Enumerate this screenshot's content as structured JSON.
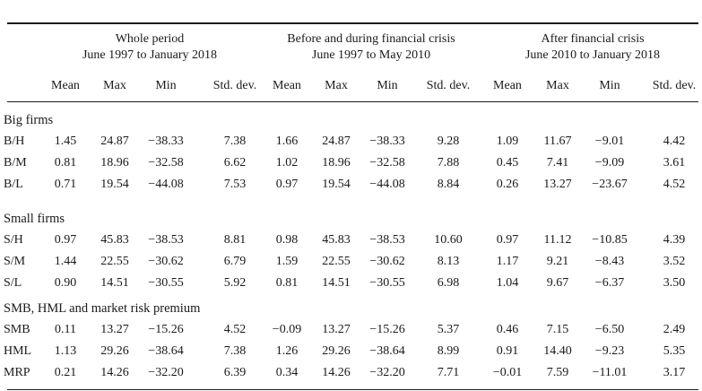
{
  "groups": [
    {
      "title": "Whole period",
      "subtitle": "June 1997 to January 2018"
    },
    {
      "title": "Before and during financial crisis",
      "subtitle": "June 1997 to May 2010"
    },
    {
      "title": "After financial crisis",
      "subtitle": "June 2010 to January 2018"
    }
  ],
  "columns": [
    "Mean",
    "Max",
    "Min",
    "Std. dev.",
    "Mean",
    "Max",
    "Min",
    "Std. dev.",
    "Mean",
    "Max",
    "Min",
    "Std. dev."
  ],
  "sections": [
    {
      "title": "Big firms",
      "rows": [
        {
          "label": "B/H",
          "values": [
            "1.45",
            "24.87",
            "−38.33",
            "7.38",
            "1.66",
            "24.87",
            "−38.33",
            "9.28",
            "1.09",
            "11.67",
            "−9.01",
            "4.42"
          ]
        },
        {
          "label": "B/M",
          "values": [
            "0.81",
            "18.96",
            "−32.58",
            "6.62",
            "1.02",
            "18.96",
            "−32.58",
            "7.88",
            "0.45",
            "7.41",
            "−9.09",
            "3.61"
          ]
        },
        {
          "label": "B/L",
          "values": [
            "0.71",
            "19.54",
            "−44.08",
            "7.53",
            "0.97",
            "19.54",
            "−44.08",
            "8.84",
            "0.26",
            "13.27",
            "−23.67",
            "4.52"
          ]
        }
      ]
    },
    {
      "title": "Small firms",
      "rows": [
        {
          "label": "S/H",
          "values": [
            "0.97",
            "45.83",
            "−38.53",
            "8.81",
            "0.98",
            "45.83",
            "−38.53",
            "10.60",
            "0.97",
            "11.12",
            "−10.85",
            "4.39"
          ]
        },
        {
          "label": "S/M",
          "values": [
            "1.44",
            "22.55",
            "−30.62",
            "6.79",
            "1.59",
            "22.55",
            "−30.62",
            "8.13",
            "1.17",
            "9.21",
            "−8.43",
            "3.52"
          ]
        },
        {
          "label": "S/L",
          "values": [
            "0.90",
            "14.51",
            "−30.55",
            "5.92",
            "0.81",
            "14.51",
            "−30.55",
            "6.98",
            "1.04",
            "9.67",
            "−6.37",
            "3.50"
          ]
        }
      ]
    },
    {
      "title": "SMB, HML and market risk premium",
      "rows": [
        {
          "label": "SMB",
          "values": [
            "0.11",
            "13.27",
            "−15.26",
            "4.52",
            "−0.09",
            "13.27",
            "−15.26",
            "5.37",
            "0.46",
            "7.15",
            "−6.50",
            "2.49"
          ]
        },
        {
          "label": "HML",
          "values": [
            "1.13",
            "29.26",
            "−38.64",
            "7.38",
            "1.26",
            "29.26",
            "−38.64",
            "8.99",
            "0.91",
            "14.40",
            "−9.23",
            "5.35"
          ]
        },
        {
          "label": "MRP",
          "values": [
            "0.21",
            "14.26",
            "−32.20",
            "6.39",
            "0.34",
            "14.26",
            "−32.20",
            "7.71",
            "−0.01",
            "7.59",
            "−11.01",
            "3.17"
          ]
        }
      ]
    }
  ]
}
